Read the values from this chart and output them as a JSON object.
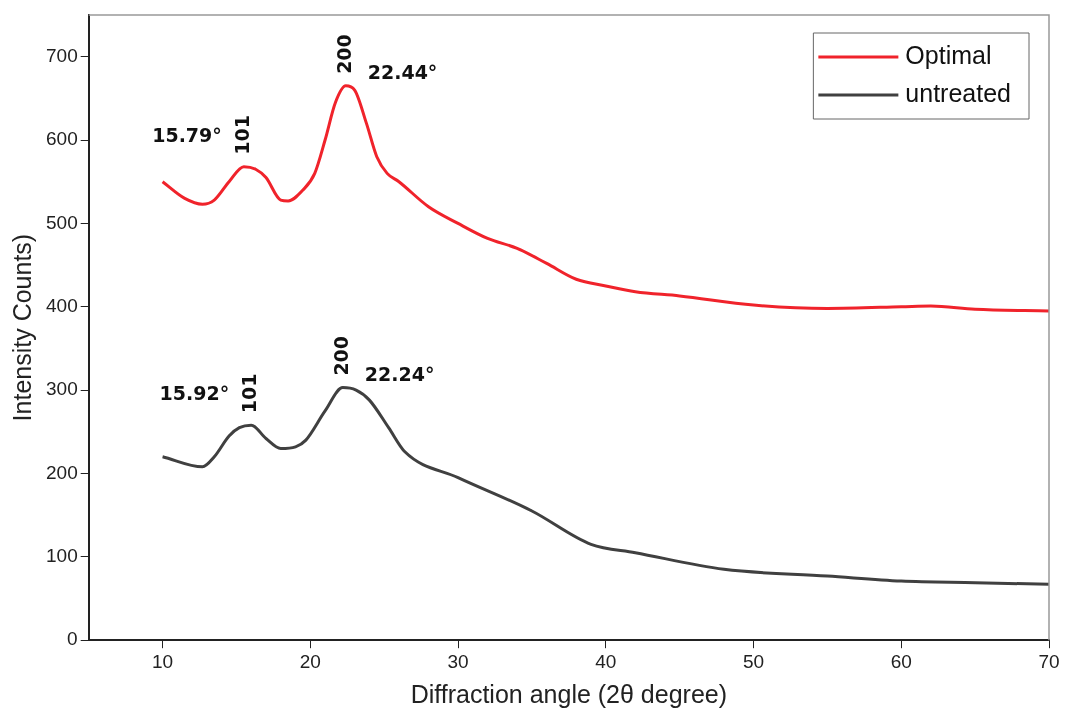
{
  "chart_data": {
    "type": "line",
    "xlabel": "Diffraction angle (2θ degree)",
    "ylabel": "Intensity Counts)",
    "xlim": [
      5,
      70
    ],
    "xticks": [
      10,
      20,
      30,
      40,
      50,
      60,
      70
    ],
    "ylim": [
      0,
      750
    ],
    "yticks": [
      0,
      100,
      200,
      300,
      400,
      500,
      600,
      700
    ],
    "legend": "top right",
    "grid": false,
    "marker": "none",
    "line_style": "solid",
    "series": [
      {
        "name": "Optimal",
        "color": "#f0232b",
        "x": [
          10,
          11.5,
          12.7,
          13.5,
          14.5,
          15.5,
          16.3,
          17,
          18,
          18.5,
          19.5,
          20.3,
          21,
          21.7,
          22.4,
          23,
          23.8,
          24.5,
          25.2,
          26,
          28,
          30,
          32,
          34,
          36,
          38,
          40,
          42,
          45,
          50,
          55,
          60,
          62,
          65,
          70
        ],
        "values": [
          550,
          530,
          523,
          528,
          550,
          568,
          565,
          555,
          528,
          527,
          540,
          560,
          600,
          645,
          665,
          660,
          620,
          580,
          560,
          550,
          520,
          500,
          482,
          470,
          452,
          433,
          425,
          418,
          413,
          402,
          398,
          400,
          401,
          397,
          395
        ]
      },
      {
        "name": "untreated",
        "color": "#404040",
        "x": [
          10,
          12.7,
          13.5,
          14.5,
          15.2,
          16,
          17,
          18,
          19,
          19.7,
          21,
          22.2,
          23.1,
          24,
          25.3,
          26.4,
          30,
          35,
          39,
          42,
          48,
          55,
          60,
          65,
          70
        ],
        "values": [
          220,
          208,
          220,
          245,
          255,
          258,
          242,
          230,
          232,
          240,
          275,
          303,
          300,
          288,
          255,
          226,
          195,
          155,
          115,
          105,
          85,
          77,
          71,
          69,
          67
        ]
      }
    ],
    "annotations": [
      {
        "text": "101",
        "x": 15.5,
        "y": 568
      },
      {
        "text": "15.79°",
        "x": 15.5,
        "y": 568
      },
      {
        "text": "200",
        "x": 22.4,
        "y": 665
      },
      {
        "text": "22.44°",
        "x": 22.4,
        "y": 665
      },
      {
        "text": "101",
        "x": 16,
        "y": 258
      },
      {
        "text": "15.92°",
        "x": 16,
        "y": 258
      },
      {
        "text": "200",
        "x": 22.2,
        "y": 303
      },
      {
        "text": "22.24°",
        "x": 22.2,
        "y": 303
      }
    ]
  }
}
